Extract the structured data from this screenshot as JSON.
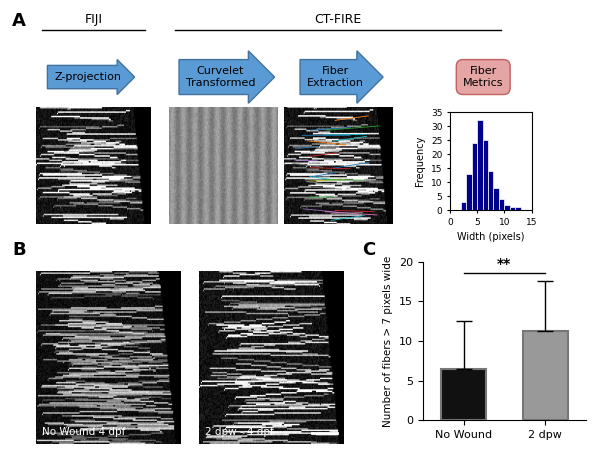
{
  "panel_labels": [
    "A",
    "B",
    "C"
  ],
  "panel_a": {
    "tools": [
      "FIJI",
      "CT-FIRE"
    ],
    "steps": [
      "Z-projection",
      "Curvelet\nTransformed",
      "Fiber\nExtraction"
    ],
    "result": "Fiber\nMetrics"
  },
  "panel_b": {
    "image_labels": [
      "No Wound 4 dpf",
      "2 dpw - 4 dpf"
    ]
  },
  "chart_data": [
    {
      "type": "histogram",
      "x_label": "Width (pixels)",
      "y_label": "Frequency",
      "bins": [
        2,
        3,
        4,
        5,
        6,
        7,
        8,
        9,
        10,
        11,
        12,
        13
      ],
      "counts": [
        3,
        13,
        24,
        32,
        25,
        14,
        8,
        4,
        2,
        1,
        1
      ],
      "color": "#00008b",
      "xlim": [
        0,
        15
      ],
      "xticks": [
        0,
        5,
        10,
        15
      ],
      "ylim": [
        0,
        35
      ],
      "yticks": [
        0,
        5,
        10,
        15,
        20,
        25,
        30,
        35
      ]
    },
    {
      "type": "bar",
      "y_label": "Number of fibers > 7 pixels wide",
      "categories": [
        "No Wound",
        "2 dpw"
      ],
      "values": [
        6.4,
        11.3
      ],
      "error": [
        6.1,
        6.2
      ],
      "colors": [
        "#111111",
        "#999999"
      ],
      "annotation": "**",
      "ylim": [
        0,
        20
      ],
      "yticks": [
        0,
        5,
        10,
        15,
        20
      ]
    }
  ]
}
